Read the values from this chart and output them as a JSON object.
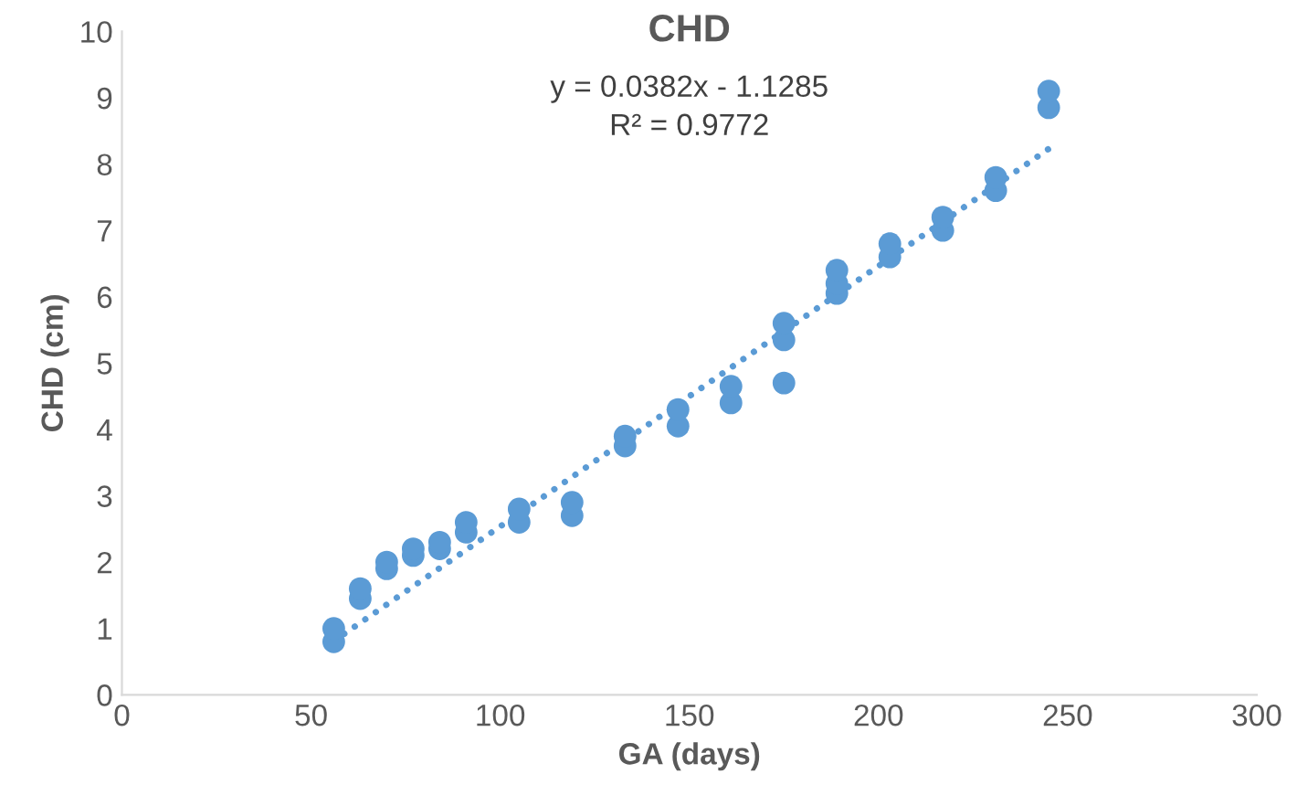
{
  "chart_data": {
    "type": "scatter",
    "title": "CHD",
    "xlabel": "GA (days)",
    "ylabel": "CHD (cm)",
    "annotations": [
      "y = 0.0382x - 1.1285",
      "R² = 0.9772"
    ],
    "xlim": [
      0,
      300
    ],
    "xticks": [
      0,
      50,
      100,
      150,
      200,
      250,
      300
    ],
    "ylim": [
      0,
      10
    ],
    "yticks": [
      0,
      1,
      2,
      3,
      4,
      5,
      6,
      7,
      8,
      9,
      10
    ],
    "grid": false,
    "legend": false,
    "marker": "circle",
    "series": [
      {
        "color": "#5b9bd5",
        "x": [
          56,
          56,
          63,
          63,
          70,
          70,
          77,
          77,
          84,
          84,
          91,
          91,
          105,
          105,
          119,
          119,
          133,
          133,
          147,
          147,
          161,
          161,
          175,
          175,
          175,
          189,
          189,
          189,
          203,
          203,
          217,
          217,
          231,
          231,
          245,
          245
        ],
        "values": [
          0.8,
          1.0,
          1.45,
          1.6,
          1.9,
          2.0,
          2.1,
          2.2,
          2.2,
          2.3,
          2.45,
          2.6,
          2.6,
          2.8,
          2.7,
          2.9,
          3.75,
          3.9,
          4.05,
          4.3,
          4.4,
          4.65,
          4.7,
          5.35,
          5.6,
          6.05,
          6.2,
          6.4,
          6.6,
          6.8,
          7.0,
          7.2,
          7.6,
          7.8,
          8.85,
          9.1
        ]
      },
      {
        "type": "line",
        "color": "#5b9bd5",
        "line_style": "dotted",
        "marker": "none",
        "x": [
          56,
          245
        ],
        "values": [
          0.81,
          8.23
        ]
      }
    ]
  }
}
